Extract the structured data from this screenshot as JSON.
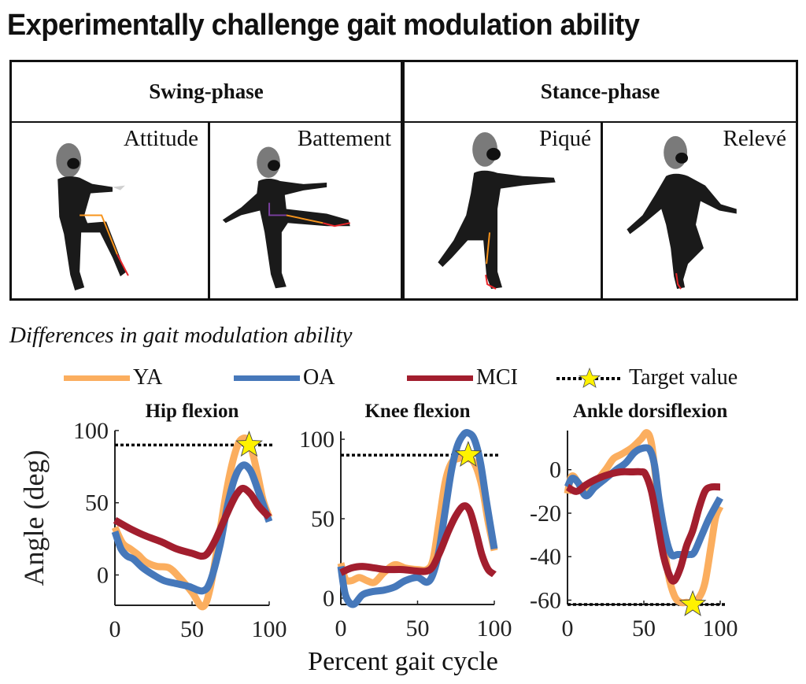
{
  "title": "Experimentally challenge gait modulation ability",
  "phases": [
    {
      "label": "Swing-phase",
      "poses": [
        {
          "label": "Attitude",
          "icon": "dancer-attitude-pose-figure"
        },
        {
          "label": "Battement",
          "icon": "dancer-battement-pose-figure"
        }
      ]
    },
    {
      "label": "Stance-phase",
      "poses": [
        {
          "label": "Piqué",
          "icon": "dancer-pique-pose-figure"
        },
        {
          "label": "Relevé",
          "icon": "dancer-releve-pose-figure"
        }
      ]
    }
  ],
  "subtitle": "Differences in gait modulation ability",
  "legend": [
    {
      "label": "YA",
      "color": "#FBAE5F",
      "style": "solid"
    },
    {
      "label": "OA",
      "color": "#4678BA",
      "style": "solid"
    },
    {
      "label": "MCI",
      "color": "#A21E2E",
      "style": "solid"
    },
    {
      "label": "Target value",
      "color": "#000000",
      "style": "dotted-star",
      "marker_color": "#FFF200"
    }
  ],
  "chart_data": [
    {
      "type": "line",
      "title": "Hip flexion",
      "xlabel": "Percent gait cycle",
      "ylabel": "Angle (deg)",
      "xlim": [
        0,
        100
      ],
      "ylim": [
        -21,
        100
      ],
      "xticks": [
        0,
        50,
        100
      ],
      "yticks": [
        0,
        50,
        100
      ],
      "target": {
        "value": 90,
        "star_x": 87
      },
      "series": [
        {
          "name": "YA",
          "x": [
            0,
            5,
            10,
            15,
            20,
            27,
            35,
            42,
            50,
            57,
            62,
            68,
            73,
            78,
            82,
            87,
            92,
            96,
            100
          ],
          "y": [
            33,
            22,
            18,
            14,
            9,
            6,
            5,
            -2,
            -12,
            -22,
            -8,
            30,
            62,
            85,
            94,
            92,
            72,
            52,
            40
          ]
        },
        {
          "name": "OA",
          "x": [
            0,
            4,
            8,
            12,
            18,
            25,
            32,
            40,
            48,
            57,
            62,
            68,
            73,
            78,
            83,
            88,
            93,
            100
          ],
          "y": [
            30,
            18,
            13,
            11,
            5,
            0,
            -4,
            -6,
            -8,
            -11,
            -4,
            20,
            48,
            68,
            76,
            72,
            58,
            37
          ]
        },
        {
          "name": "MCI",
          "x": [
            0,
            10,
            20,
            30,
            40,
            50,
            56,
            60,
            65,
            70,
            75,
            79,
            83,
            88,
            93,
            100
          ],
          "y": [
            38,
            32,
            27,
            23,
            18,
            15,
            13,
            15,
            24,
            36,
            48,
            56,
            60,
            56,
            48,
            40
          ]
        }
      ]
    },
    {
      "type": "line",
      "title": "Knee flexion",
      "xlabel": "Percent gait cycle",
      "ylabel": "Angle (deg)",
      "xlim": [
        0,
        100
      ],
      "ylim": [
        -4,
        105
      ],
      "xticks": [
        0,
        50,
        100
      ],
      "yticks": [
        0,
        50,
        100
      ],
      "target": {
        "value": 90,
        "star_x": 83
      },
      "series": [
        {
          "name": "YA",
          "x": [
            0,
            3,
            7,
            12,
            17,
            22,
            28,
            35,
            42,
            50,
            56,
            60,
            64,
            68,
            72,
            77,
            82,
            87,
            92,
            96,
            100
          ],
          "y": [
            22,
            12,
            11,
            13,
            11,
            10,
            16,
            21,
            19,
            18,
            18,
            24,
            48,
            73,
            85,
            88,
            88,
            85,
            70,
            48,
            30
          ]
        },
        {
          "name": "OA",
          "x": [
            0,
            3,
            8,
            14,
            20,
            28,
            35,
            42,
            50,
            56,
            60,
            64,
            68,
            72,
            76,
            80,
            83,
            87,
            91,
            95,
            100
          ],
          "y": [
            20,
            2,
            -4,
            2,
            4,
            5,
            7,
            11,
            13,
            10,
            15,
            30,
            55,
            80,
            96,
            103,
            104,
            100,
            85,
            60,
            31
          ]
        },
        {
          "name": "MCI",
          "x": [
            0,
            7,
            14,
            22,
            30,
            40,
            50,
            56,
            60,
            65,
            70,
            75,
            80,
            84,
            88,
            92,
            96,
            100
          ],
          "y": [
            16,
            19,
            20,
            19,
            18,
            18,
            17,
            17,
            20,
            30,
            42,
            52,
            58,
            55,
            42,
            27,
            18,
            15
          ]
        }
      ]
    },
    {
      "type": "line",
      "title": "Ankle dorsiflexion",
      "xlabel": "Percent gait cycle",
      "ylabel": "Angle (deg)",
      "xlim": [
        0,
        100
      ],
      "ylim": [
        -62,
        18
      ],
      "xticks": [
        0,
        50,
        100
      ],
      "yticks": [
        -60,
        -40,
        -20,
        0
      ],
      "target": {
        "value": -62,
        "star_x": 82
      },
      "series": [
        {
          "name": "YA",
          "x": [
            0,
            2,
            4,
            7,
            12,
            18,
            25,
            30,
            35,
            42,
            48,
            52,
            55,
            58,
            62,
            66,
            70,
            74,
            78,
            82,
            86,
            90,
            94,
            97,
            100
          ],
          "y": [
            -11,
            -4,
            -3,
            -6,
            -9,
            -6,
            0,
            5,
            7,
            10,
            14,
            17,
            12,
            -5,
            -28,
            -48,
            -58,
            -61,
            -61,
            -61,
            -59,
            -52,
            -35,
            -22,
            -17
          ]
        },
        {
          "name": "OA",
          "x": [
            0,
            3,
            7,
            12,
            18,
            25,
            32,
            38,
            44,
            50,
            54,
            57,
            60,
            64,
            68,
            72,
            76,
            80,
            83,
            88,
            93,
            100
          ],
          "y": [
            -8,
            -4,
            -6,
            -12,
            -8,
            -4,
            0,
            3,
            8,
            10,
            9,
            2,
            -14,
            -30,
            -39,
            -39,
            -39,
            -39,
            -38,
            -30,
            -22,
            -13
          ]
        },
        {
          "name": "MCI",
          "x": [
            0,
            6,
            12,
            20,
            28,
            35,
            42,
            48,
            51,
            55,
            59,
            63,
            67,
            70,
            74,
            78,
            82,
            86,
            90,
            94,
            100
          ],
          "y": [
            -8,
            -10,
            -7,
            -4,
            -2,
            -1,
            -1,
            -1,
            -2,
            -10,
            -25,
            -40,
            -49,
            -51,
            -45,
            -35,
            -28,
            -18,
            -10,
            -8,
            -8
          ]
        }
      ]
    }
  ]
}
